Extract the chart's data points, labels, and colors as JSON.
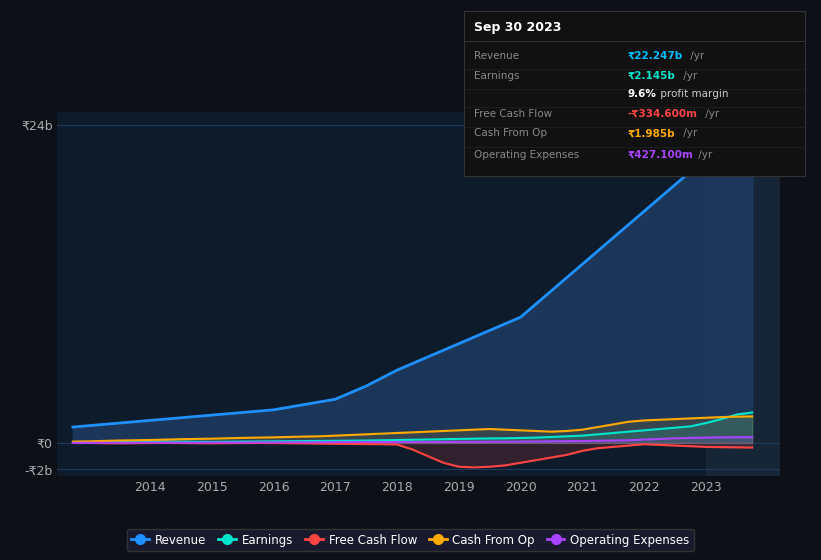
{
  "bg_color": "#0d1117",
  "chart_bg": "#0d1b2a",
  "grid_color": "#1e3a5f",
  "years": [
    2012.75,
    2013,
    2013.25,
    2013.5,
    2013.75,
    2014,
    2014.25,
    2014.5,
    2014.75,
    2015,
    2015.25,
    2015.5,
    2015.75,
    2016,
    2016.25,
    2016.5,
    2016.75,
    2017,
    2017.25,
    2017.5,
    2017.75,
    2018,
    2018.25,
    2018.5,
    2018.75,
    2019,
    2019.25,
    2019.5,
    2019.75,
    2020,
    2020.25,
    2020.5,
    2020.75,
    2021,
    2021.25,
    2021.5,
    2021.75,
    2022,
    2022.25,
    2022.5,
    2022.75,
    2023,
    2023.25,
    2023.5,
    2023.75
  ],
  "revenue": [
    1.2,
    1.3,
    1.4,
    1.5,
    1.6,
    1.7,
    1.8,
    1.9,
    2.0,
    2.1,
    2.2,
    2.3,
    2.4,
    2.5,
    2.7,
    2.9,
    3.1,
    3.3,
    3.8,
    4.3,
    4.9,
    5.5,
    6.0,
    6.5,
    7.0,
    7.5,
    8.0,
    8.5,
    9.0,
    9.5,
    10.5,
    11.5,
    12.5,
    13.5,
    14.5,
    15.5,
    16.5,
    17.5,
    18.5,
    19.5,
    20.5,
    21.5,
    22.0,
    22.247,
    22.5
  ],
  "earnings": [
    0.05,
    0.06,
    0.07,
    0.08,
    0.09,
    0.1,
    0.11,
    0.1,
    0.09,
    0.08,
    0.09,
    0.1,
    0.11,
    0.12,
    0.13,
    0.14,
    0.15,
    0.16,
    0.17,
    0.18,
    0.2,
    0.22,
    0.24,
    0.26,
    0.28,
    0.3,
    0.32,
    0.34,
    0.35,
    0.37,
    0.4,
    0.45,
    0.5,
    0.55,
    0.65,
    0.75,
    0.85,
    0.95,
    1.05,
    1.15,
    1.25,
    1.5,
    1.8,
    2.145,
    2.3
  ],
  "free_cash_flow": [
    0.0,
    0.0,
    -0.02,
    -0.03,
    -0.02,
    -0.01,
    0.0,
    -0.01,
    -0.02,
    -0.03,
    -0.02,
    -0.01,
    0.0,
    -0.01,
    -0.02,
    -0.03,
    -0.05,
    -0.07,
    -0.08,
    -0.09,
    -0.1,
    -0.12,
    -0.5,
    -1.0,
    -1.5,
    -1.8,
    -1.85,
    -1.8,
    -1.7,
    -1.5,
    -1.3,
    -1.1,
    -0.9,
    -0.6,
    -0.4,
    -0.3,
    -0.2,
    -0.1,
    -0.15,
    -0.2,
    -0.25,
    -0.3,
    -0.32,
    -0.3346,
    -0.35
  ],
  "cash_from_op": [
    0.1,
    0.12,
    0.15,
    0.18,
    0.2,
    0.22,
    0.25,
    0.28,
    0.3,
    0.32,
    0.35,
    0.38,
    0.4,
    0.42,
    0.45,
    0.48,
    0.5,
    0.55,
    0.6,
    0.65,
    0.7,
    0.75,
    0.8,
    0.85,
    0.9,
    0.95,
    1.0,
    1.05,
    1.0,
    0.95,
    0.9,
    0.85,
    0.9,
    1.0,
    1.2,
    1.4,
    1.6,
    1.7,
    1.75,
    1.8,
    1.85,
    1.9,
    1.95,
    1.985,
    2.0
  ],
  "operating_expenses": [
    0.0,
    0.01,
    0.01,
    0.01,
    0.01,
    0.02,
    0.02,
    0.02,
    0.02,
    0.03,
    0.03,
    0.03,
    0.04,
    0.04,
    0.05,
    0.05,
    0.05,
    0.06,
    0.06,
    0.07,
    0.07,
    0.07,
    0.07,
    0.07,
    0.07,
    0.08,
    0.08,
    0.09,
    0.09,
    0.1,
    0.11,
    0.12,
    0.13,
    0.14,
    0.16,
    0.18,
    0.2,
    0.25,
    0.3,
    0.35,
    0.38,
    0.4,
    0.42,
    0.4271,
    0.43
  ],
  "revenue_color": "#1e90ff",
  "revenue_fill": "#1e3a5f",
  "earnings_color": "#00e5cc",
  "fcf_color": "#ff4444",
  "cash_op_color": "#ffaa00",
  "op_exp_color": "#aa44ff",
  "ytick_labels": [
    "₹24b",
    "₹0",
    "-₹2b"
  ],
  "ytick_values": [
    24,
    0,
    -2
  ],
  "xlim": [
    2012.5,
    2024.2
  ],
  "ylim": [
    -2.5,
    25
  ],
  "xtick_years": [
    2014,
    2015,
    2016,
    2017,
    2018,
    2019,
    2020,
    2021,
    2022,
    2023
  ],
  "highlight_x_start": 2023.0,
  "highlight_x_end": 2024.2,
  "tooltip_title": "Sep 30 2023",
  "tooltip_rows": [
    {
      "label": "Revenue",
      "value": "₹22.247b",
      "suffix": " /yr",
      "value_color": "#00bfff",
      "bold_value": true
    },
    {
      "label": "Earnings",
      "value": "₹2.145b",
      "suffix": " /yr",
      "value_color": "#00e5cc",
      "bold_value": true
    },
    {
      "label": "",
      "value": "9.6%",
      "suffix": " profit margin",
      "value_color": "#ffffff",
      "bold_value": true
    },
    {
      "label": "Free Cash Flow",
      "value": "-₹334.600m",
      "suffix": " /yr",
      "value_color": "#ff4444",
      "bold_value": true
    },
    {
      "label": "Cash From Op",
      "value": "₹1.985b",
      "suffix": " /yr",
      "value_color": "#ffaa00",
      "bold_value": true
    },
    {
      "label": "Operating Expenses",
      "value": "₹427.100m",
      "suffix": " /yr",
      "value_color": "#aa44ff",
      "bold_value": true
    }
  ],
  "legend_items": [
    {
      "label": "Revenue",
      "color": "#1e90ff"
    },
    {
      "label": "Earnings",
      "color": "#00e5cc"
    },
    {
      "label": "Free Cash Flow",
      "color": "#ff4444"
    },
    {
      "label": "Cash From Op",
      "color": "#ffaa00"
    },
    {
      "label": "Operating Expenses",
      "color": "#aa44ff"
    }
  ]
}
